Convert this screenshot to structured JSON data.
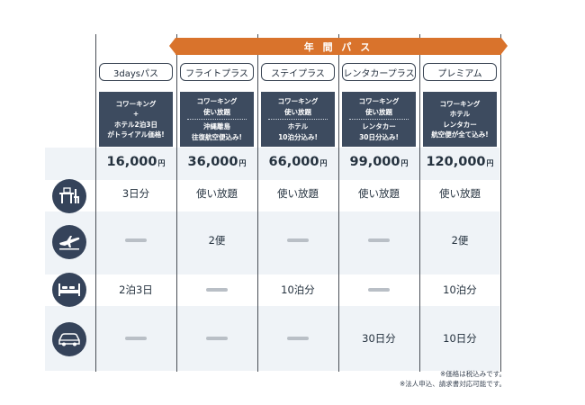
{
  "annual_pass_label": "年 間 パ ス",
  "plans": [
    {
      "name": "3daysパス",
      "desc": [
        "コワーキング",
        "+",
        "ホテル2泊3日",
        "がトライアル価格!"
      ],
      "price": "16,000",
      "yen": "円"
    },
    {
      "name": "フライトプラス",
      "desc_top": [
        "コワーキング",
        "使い放題"
      ],
      "desc_bottom": [
        "沖縄離島",
        "往復航空便込み!"
      ],
      "price": "36,000",
      "yen": "円"
    },
    {
      "name": "ステイプラス",
      "desc_top": [
        "コワーキング",
        "使い放題"
      ],
      "desc_bottom": [
        "ホテル",
        "10泊分込み!"
      ],
      "price": "66,000",
      "yen": "円"
    },
    {
      "name": "レンタカープラス",
      "desc_top": [
        "コワーキング",
        "使い放題"
      ],
      "desc_bottom": [
        "レンタカー",
        "30日分込み!"
      ],
      "price": "99,000",
      "yen": "円"
    },
    {
      "name": "プレミアム",
      "desc": [
        "コワーキング",
        "ホテル",
        "レンタカー",
        "航空便が全て込み!"
      ],
      "price": "120,000",
      "yen": "円"
    }
  ],
  "rows": [
    {
      "icon": "desk-icon",
      "values": [
        "3日分",
        "使い放題",
        "使い放題",
        "使い放題",
        "使い放題"
      ]
    },
    {
      "icon": "airplane-icon",
      "values": [
        null,
        "2便",
        null,
        null,
        "2便"
      ]
    },
    {
      "icon": "bed-icon",
      "values": [
        "2泊3日",
        null,
        "10泊分",
        null,
        "10泊分"
      ]
    },
    {
      "icon": "car-icon",
      "values": [
        null,
        null,
        null,
        "30日分",
        "10日分"
      ]
    }
  ],
  "notes": [
    "※価格は税込みです。",
    "※法人申込、請求書対応可能です。"
  ]
}
